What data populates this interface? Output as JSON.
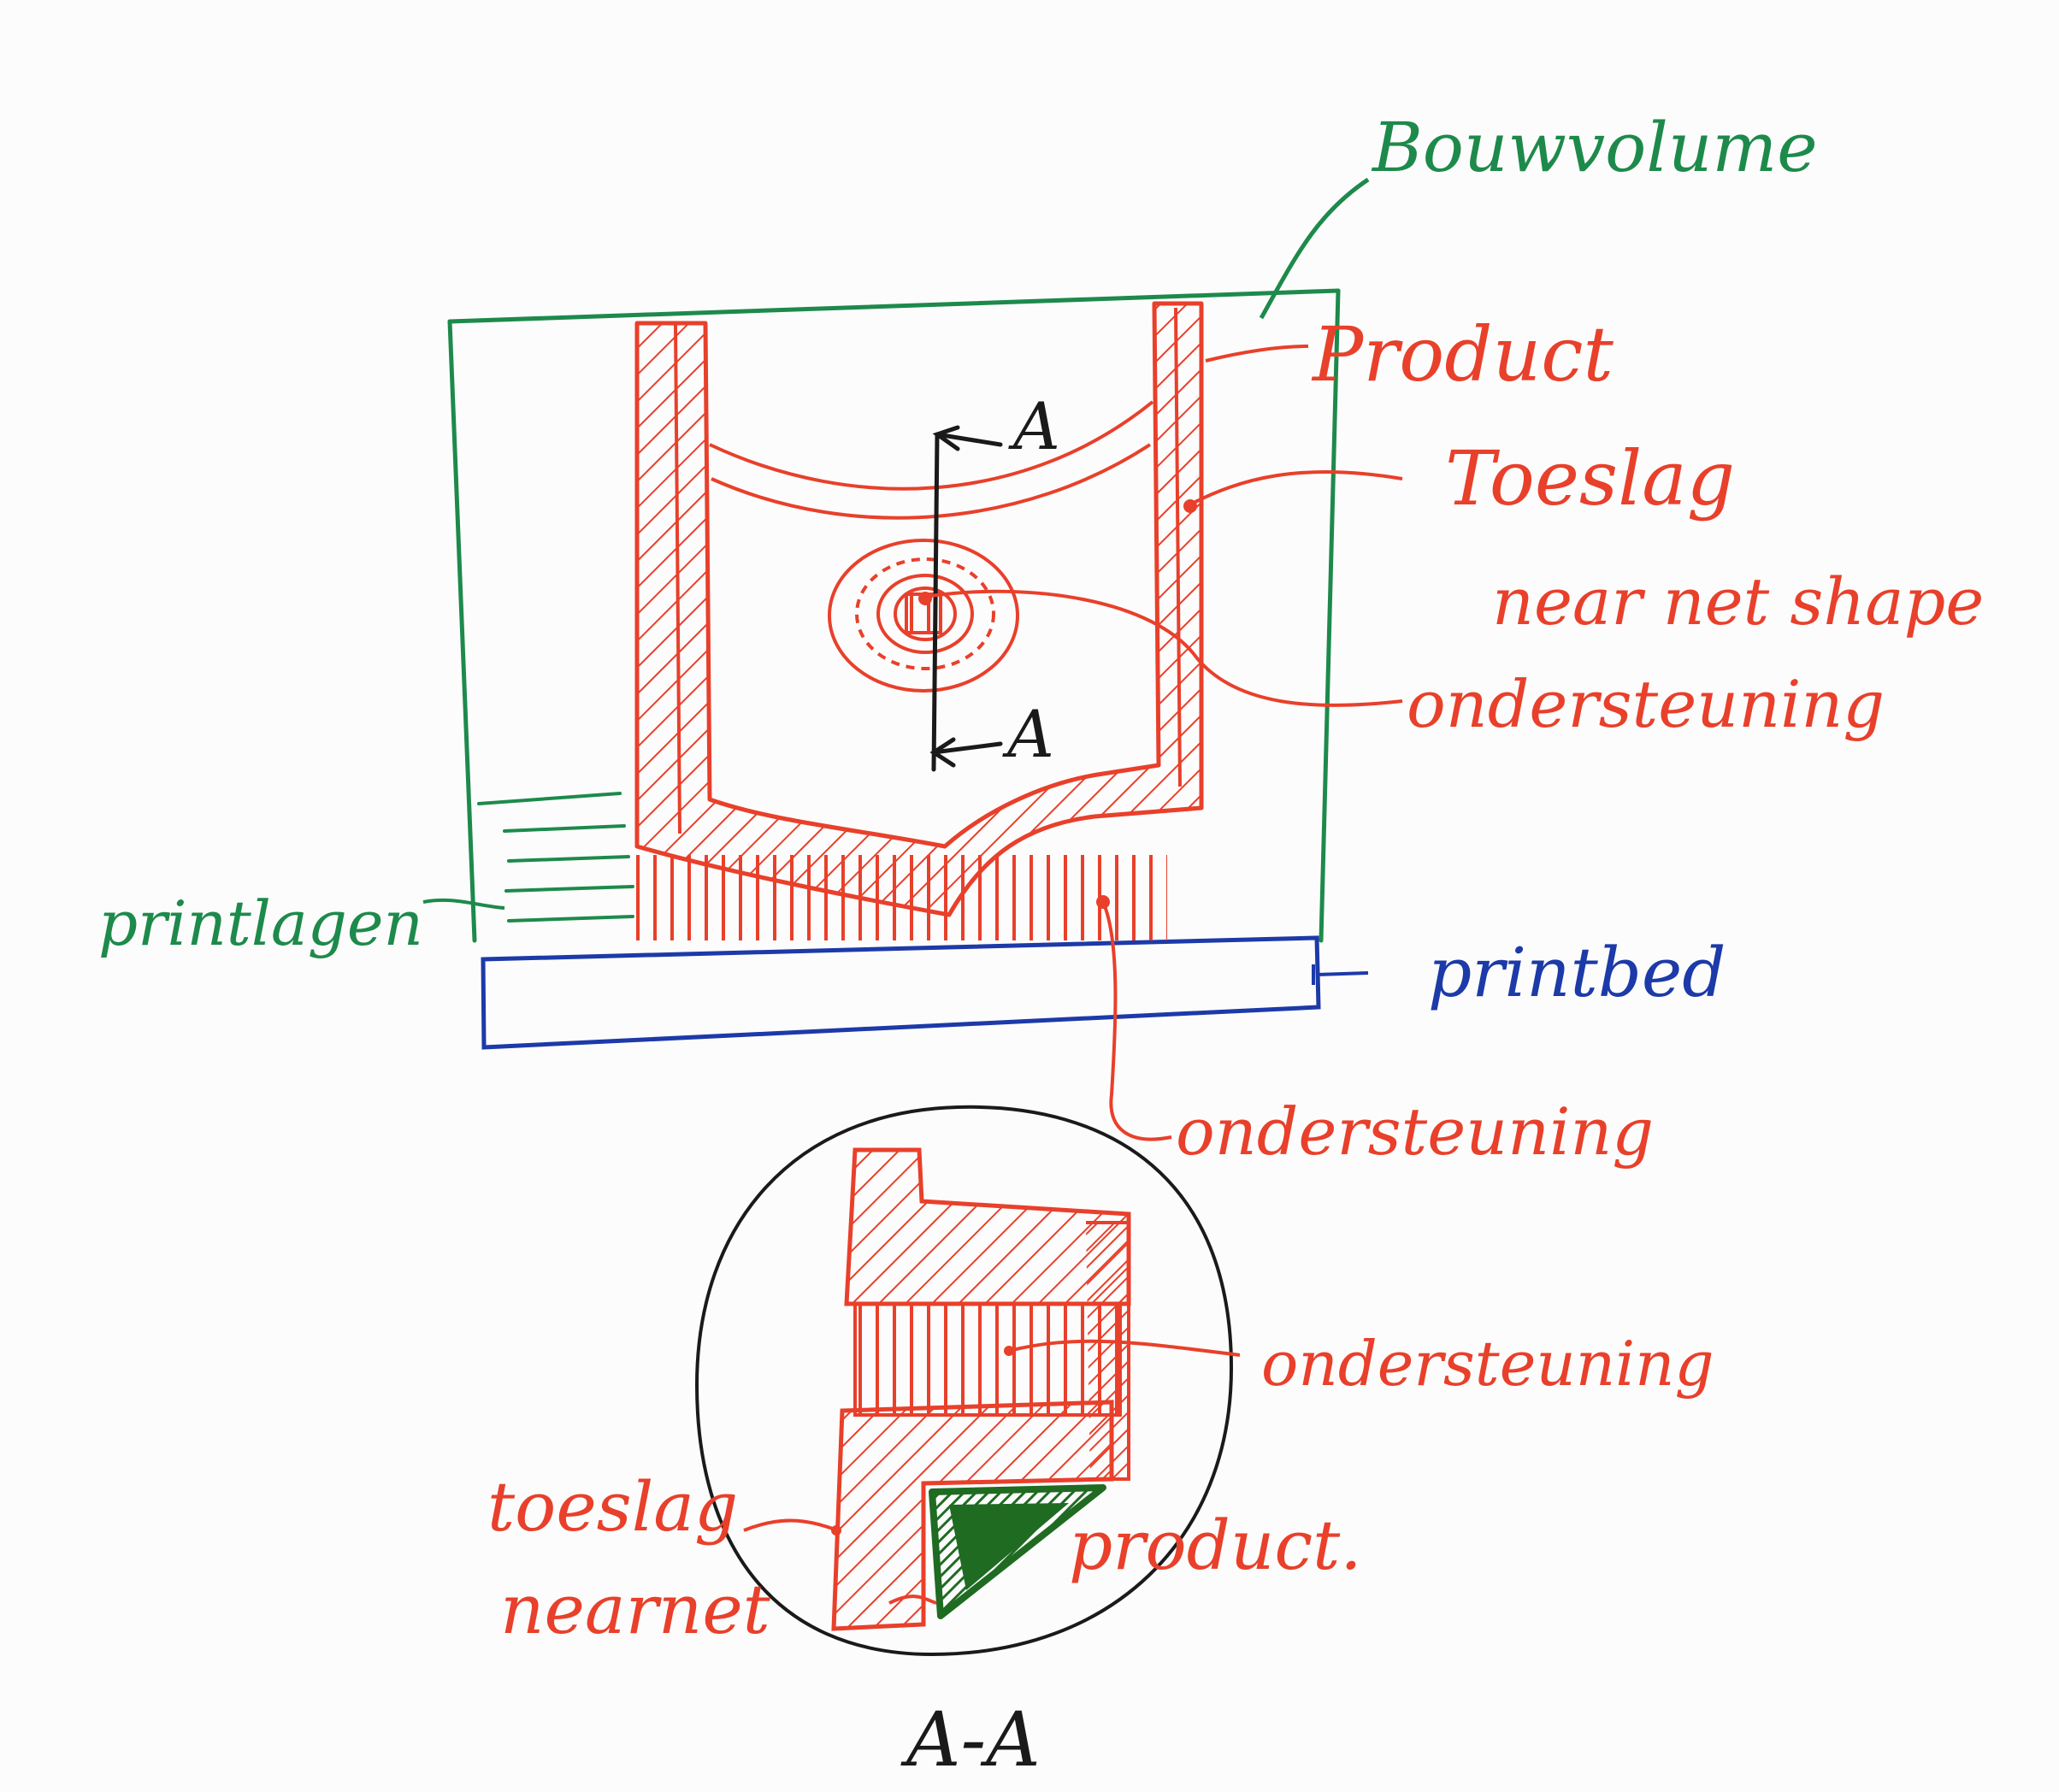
{
  "labels": {
    "bouwvolume": "Bouwvolume",
    "product_top": "Product",
    "toeslag": "Toeslag",
    "near_net_shape": "near net shape",
    "ondersteuning_1": "ondersteuning",
    "printlagen": "printlagen",
    "printbed": "printbed",
    "ondersteuning_2": "ondersteuning",
    "ondersteuning_3": "ondersteuning",
    "toeslag_detail": "toeslag",
    "nearnet_detail": "nearnet",
    "product_detail": "product.",
    "section_mark_top": "A",
    "section_mark_bottom": "A",
    "section_title": "A-A"
  },
  "colors": {
    "red": "#e8402b",
    "green": "#1d8a4b",
    "blue": "#1c3aa8",
    "black": "#1a1a1a",
    "dark_green_fill": "#1f6b22"
  }
}
